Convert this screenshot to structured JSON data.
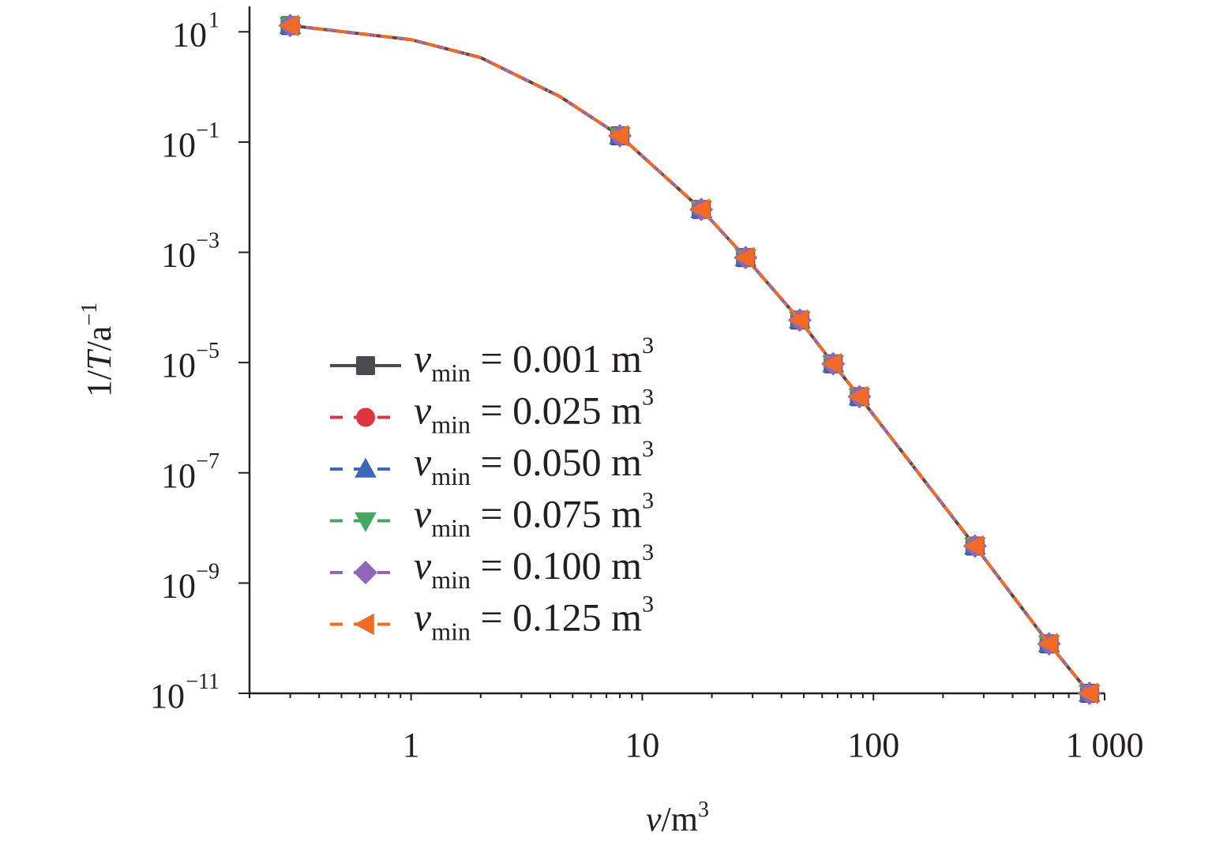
{
  "chart_data": {
    "type": "line",
    "title": "",
    "xlabel": {
      "var": "v",
      "unit": "/m",
      "sup": "3"
    },
    "ylabel": {
      "pre": "1/",
      "var": "T",
      "unit": "/a",
      "sup": "−1"
    },
    "xscale": "log",
    "yscale": "log",
    "xlim": [
      0.2,
      1000
    ],
    "ylim": [
      1e-11,
      29
    ],
    "x_ticks": [
      {
        "value": 1,
        "label": "1"
      },
      {
        "value": 10,
        "label": "10"
      },
      {
        "value": 100,
        "label": "100"
      },
      {
        "value": 1000,
        "label": "1 000"
      }
    ],
    "y_ticks": [
      {
        "value": 10,
        "base": "10",
        "exp": "1"
      },
      {
        "value": 0.1,
        "base": "10",
        "exp": "−1"
      },
      {
        "value": 0.001,
        "base": "10",
        "exp": "−3"
      },
      {
        "value": 1e-05,
        "base": "10",
        "exp": "−5"
      },
      {
        "value": 1e-07,
        "base": "10",
        "exp": "−7"
      },
      {
        "value": 1e-09,
        "base": "10",
        "exp": "−9"
      },
      {
        "value": 1e-11,
        "base": "10",
        "exp": "−11"
      }
    ],
    "grid": false,
    "legend_position": "center-left",
    "x": [
      0.3,
      1,
      2,
      4.4,
      8,
      18,
      28,
      48,
      67,
      87,
      275,
      575,
      860
    ],
    "marker_x": [
      0.3,
      8,
      18,
      28,
      48,
      67,
      87,
      275,
      575,
      860
    ],
    "series": [
      {
        "name": "v_min = 0.001 m3",
        "label": {
          "var": "v",
          "sub": "min",
          "text": " = 0.001 m",
          "sup": "3"
        },
        "color": "#4a4a4f",
        "marker": "square",
        "dash": "solid",
        "values": [
          13,
          7.2,
          3.4,
          0.67,
          0.13,
          0.006,
          0.0008,
          5.9e-05,
          9.5e-06,
          2.4e-06,
          4.7e-09,
          7.9e-11,
          1e-11
        ]
      },
      {
        "name": "v_min = 0.025 m3",
        "label": {
          "var": "v",
          "sub": "min",
          "text": " = 0.025 m",
          "sup": "3"
        },
        "color": "#e03342",
        "marker": "circle",
        "dash": "dash",
        "values": [
          13,
          7.2,
          3.4,
          0.67,
          0.13,
          0.006,
          0.0008,
          5.9e-05,
          9.5e-06,
          2.4e-06,
          4.7e-09,
          7.9e-11,
          1e-11
        ]
      },
      {
        "name": "v_min = 0.050 m3",
        "label": {
          "var": "v",
          "sub": "min",
          "text": " = 0.050 m",
          "sup": "3"
        },
        "color": "#3d68b8",
        "marker": "triangle-up",
        "dash": "dash",
        "values": [
          13,
          7.2,
          3.4,
          0.67,
          0.13,
          0.006,
          0.0008,
          5.9e-05,
          9.5e-06,
          2.4e-06,
          4.7e-09,
          7.9e-11,
          1e-11
        ]
      },
      {
        "name": "v_min = 0.075 m3",
        "label": {
          "var": "v",
          "sub": "min",
          "text": " = 0.075 m",
          "sup": "3"
        },
        "color": "#46a664",
        "marker": "triangle-down",
        "dash": "dash",
        "values": [
          13,
          7.2,
          3.4,
          0.67,
          0.13,
          0.006,
          0.0008,
          5.9e-05,
          9.5e-06,
          2.4e-06,
          4.7e-09,
          7.9e-11,
          1e-11
        ]
      },
      {
        "name": "v_min = 0.100 m3",
        "label": {
          "var": "v",
          "sub": "min",
          "text": " = 0.100 m",
          "sup": "3"
        },
        "color": "#9067b8",
        "marker": "diamond",
        "dash": "dash",
        "values": [
          13,
          7.2,
          3.4,
          0.67,
          0.13,
          0.006,
          0.0008,
          5.9e-05,
          9.5e-06,
          2.4e-06,
          4.7e-09,
          7.9e-11,
          1e-11
        ]
      },
      {
        "name": "v_min = 0.125 m3",
        "label": {
          "var": "v",
          "sub": "min",
          "text": " = 0.125 m",
          "sup": "3"
        },
        "color": "#f26b25",
        "marker": "triangle-left",
        "dash": "dashdot",
        "values": [
          13,
          7.2,
          3.4,
          0.67,
          0.13,
          0.006,
          0.0008,
          5.9e-05,
          9.5e-06,
          2.4e-06,
          4.7e-09,
          7.9e-11,
          1e-11
        ]
      }
    ]
  }
}
